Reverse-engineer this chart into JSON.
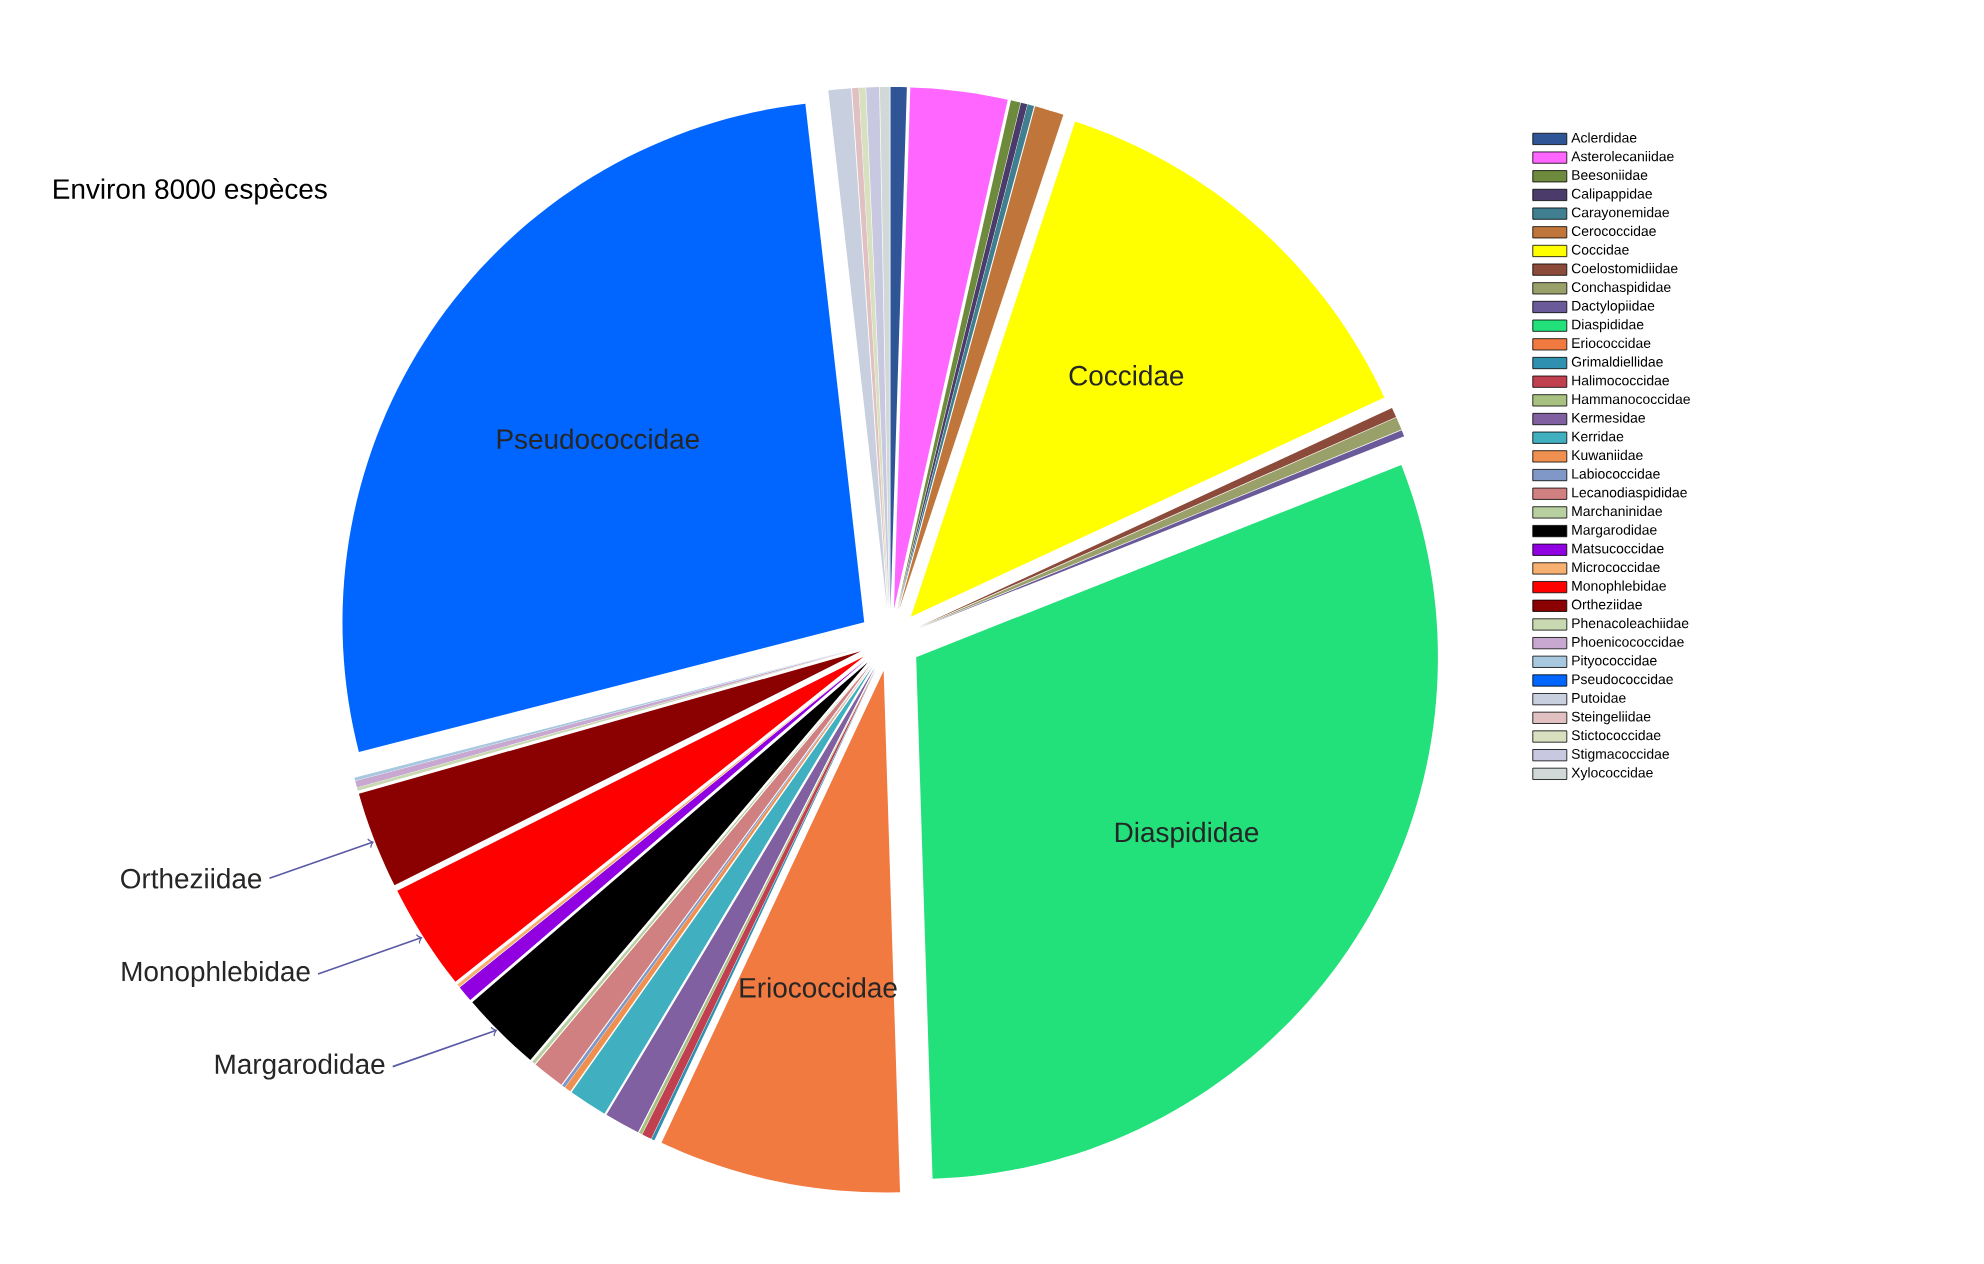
{
  "chart_data": {
    "type": "pie",
    "categories": [
      "Aclerdidae",
      "Asterolecaniidae",
      "Beesoniidae",
      "Calipappidae",
      "Carayonemidae",
      "Cerococcidae",
      "Coccidae",
      "Coelostomidiidae",
      "Conchaspididae",
      "Dactylopiidae",
      "Diaspididae",
      "Eriococcidae",
      "Grimaldiellidae",
      "Halimococcidae",
      "Hammanococcidae",
      "Kermesidae",
      "Kerridae",
      "Kuwaniidae",
      "Labiococcidae",
      "Lecanodiaspididae",
      "Marchaninidae",
      "Margarodidae",
      "Matsucoccidae",
      "Micrococcidae",
      "Monophlebidae",
      "Ortheziidae",
      "Phenacoleachiidae",
      "Phoenicococcidae",
      "Pityococcidae",
      "Pseudococcidae",
      "Putoidae",
      "Steingeliidae",
      "Stictococcidae",
      "Stigmacoccidae",
      "Xylococcidae"
    ],
    "values": [
      0.5,
      3,
      0.3,
      0.2,
      0.2,
      0.9,
      13,
      0.3,
      0.4,
      0.2,
      30.5,
      7.5,
      0.1,
      0.3,
      0.1,
      1.1,
      1.2,
      0.2,
      0.1,
      1.0,
      0.1,
      2.5,
      0.5,
      0.1,
      3.3,
      3,
      0.1,
      0.2,
      0.1,
      27.2,
      0.7,
      0.2,
      0.2,
      0.4,
      0.3
    ],
    "colors": [
      "#2f5597",
      "#ff66ff",
      "#6e8b3d",
      "#4b3b6b",
      "#3f7f8f",
      "#c0763a",
      "#ffff00",
      "#8b4a3a",
      "#9aa06a",
      "#6b5a9a",
      "#22e07a",
      "#f07a40",
      "#3090b0",
      "#c04050",
      "#a8c080",
      "#8060a0",
      "#40b0c0",
      "#f09050",
      "#8098c8",
      "#d08080",
      "#b8d0a0",
      "#000000",
      "#9000e0",
      "#f8b070",
      "#ff0000",
      "#8b0000",
      "#c8d8b0",
      "#c8a8d0",
      "#a8c8e0",
      "#0066ff",
      "#c8d0e0",
      "#e0c0c0",
      "#d8e0c0",
      "#c8c8e0",
      "#d0d8d8"
    ],
    "legend": "right",
    "annotations": [
      "Environ 8000 espèces",
      {
        "text": "Coccidae",
        "x": "Coccidae"
      },
      {
        "text": "Diaspididae",
        "x": "Diaspididae"
      },
      {
        "text": "Eriococcidae",
        "x": "Eriococcidae"
      },
      {
        "text": "Pseudococcidae",
        "x": "Pseudococcidae"
      },
      {
        "text": "Ortheziidae",
        "x": "Ortheziidae"
      },
      {
        "text": "Monophlebidae",
        "x": "Monophlebidae"
      },
      {
        "text": "Margarodidae",
        "x": "Margarodidae"
      }
    ]
  }
}
